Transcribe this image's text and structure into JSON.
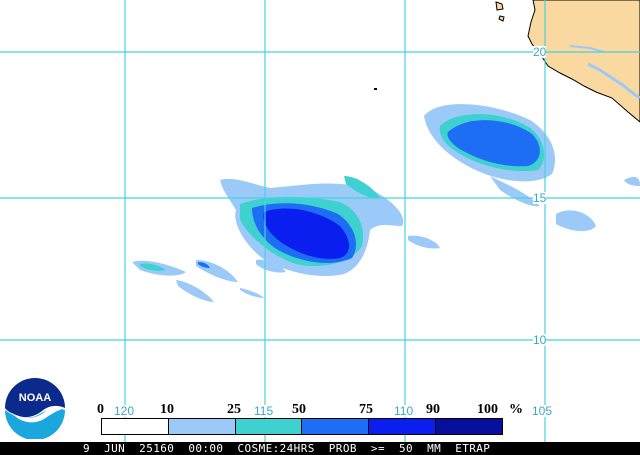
{
  "map": {
    "colors": {
      "land": "#fad9a1",
      "coast": "#000000",
      "grid": "#46d2e0",
      "band_10_25": "#9ccaf8",
      "band_25_50": "#3fd0d0",
      "band_50_75": "#1e6ef5",
      "band_75_90": "#0a1ef0",
      "band_90_100": "#06109c"
    },
    "lat_labels": [
      "20",
      "15",
      "10"
    ],
    "lon_labels": [
      "120",
      "115",
      "110",
      "105"
    ]
  },
  "legend": {
    "values": [
      "0",
      "10",
      "25",
      "50",
      "75",
      "90",
      "100"
    ],
    "unit": "%",
    "segment_colors": [
      "#ffffff",
      "#9ccaf8",
      "#3fd0d0",
      "#1e6ef5",
      "#0a1ef0",
      "#06109c"
    ]
  },
  "footer": {
    "text": "9  JUN  25160  00:00  COSME:24HRS  PROB  >=  50  MM  ETRAP"
  },
  "logo": {
    "text": "NOAA",
    "icon": "noaa-logo-icon"
  }
}
